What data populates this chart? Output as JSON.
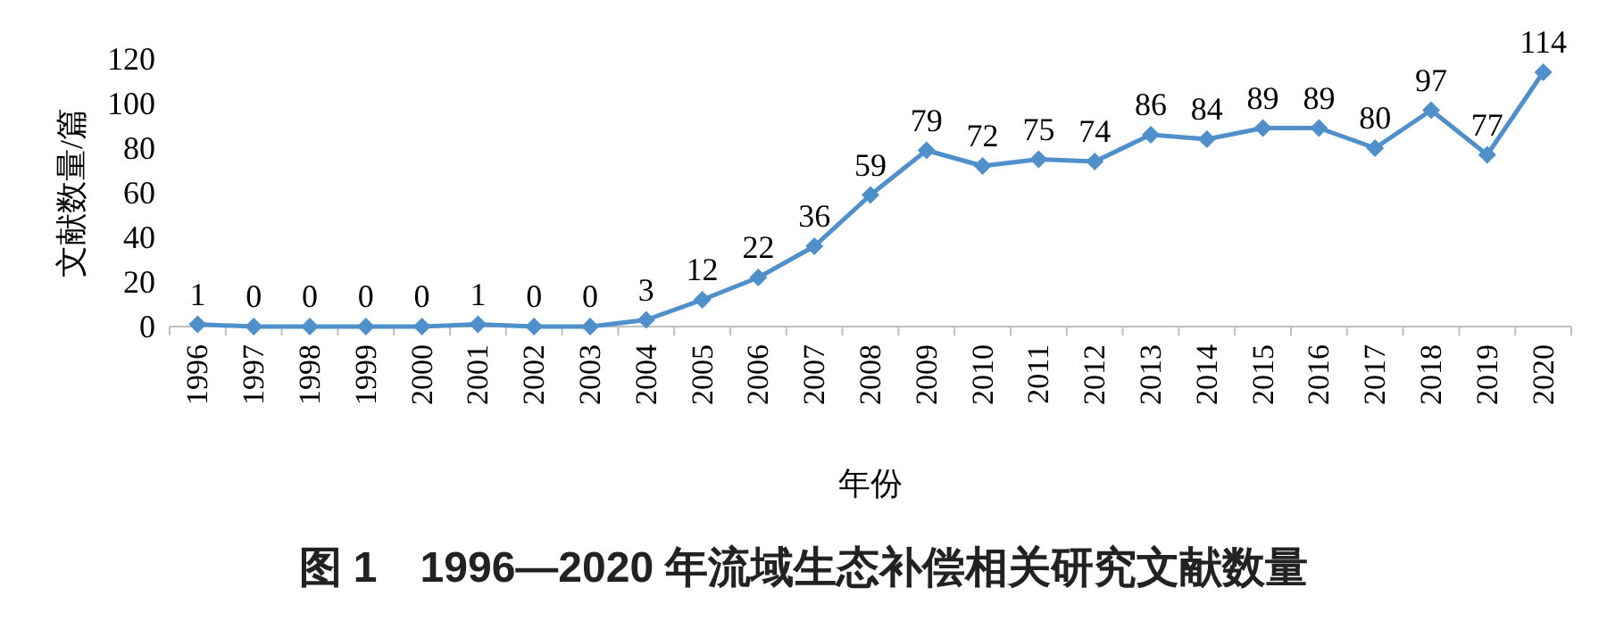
{
  "chart_data": {
    "type": "line",
    "title": "图 1　1996—2020 年流域生态补偿相关研究文献数量",
    "xlabel": "年份",
    "ylabel": "文献数量/篇",
    "categories": [
      "1996",
      "1997",
      "1998",
      "1999",
      "2000",
      "2001",
      "2002",
      "2003",
      "2004",
      "2005",
      "2006",
      "2007",
      "2008",
      "2009",
      "2010",
      "2011",
      "2012",
      "2013",
      "2014",
      "2015",
      "2016",
      "2017",
      "2018",
      "2019",
      "2020"
    ],
    "series": [
      {
        "color": "#4f8fca",
        "values": [
          1,
          0,
          0,
          0,
          0,
          1,
          0,
          0,
          3,
          12,
          22,
          36,
          59,
          79,
          72,
          75,
          74,
          86,
          84,
          89,
          89,
          80,
          97,
          77,
          114
        ]
      }
    ],
    "ylim": [
      0,
      120
    ],
    "yticks": [
      0,
      20,
      40,
      60,
      80,
      100,
      120
    ],
    "marker": "diamond",
    "line_style": "solid",
    "data_labels": true
  }
}
